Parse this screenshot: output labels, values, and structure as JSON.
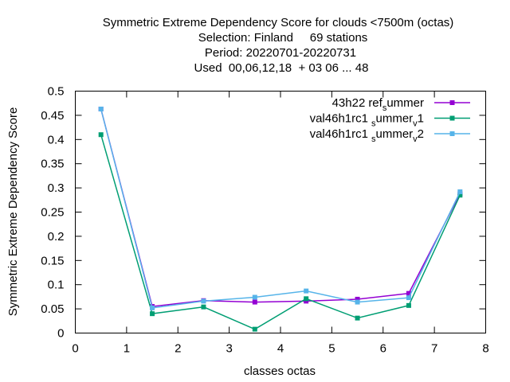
{
  "chart_data": {
    "type": "line",
    "title_lines": [
      "Symmetric Extreme Dependency Score  for clouds <7500m (octas)",
      "Selection: Finland     69 stations",
      "Period: 20220701-20220731",
      "Used  00,06,12,18  + 03 06 ... 48"
    ],
    "xlabel": "classes octas",
    "ylabel": "Symmetric Extreme Dependency Score",
    "xlim": [
      0,
      8
    ],
    "ylim": [
      0,
      0.5
    ],
    "xticks": [
      0,
      1,
      2,
      3,
      4,
      5,
      6,
      7,
      8
    ],
    "yticks": [
      0,
      0.05,
      0.1,
      0.15,
      0.2,
      0.25,
      0.3,
      0.35,
      0.4,
      0.45,
      0.5
    ],
    "xtick_labels": [
      "0",
      "1",
      "2",
      "3",
      "4",
      "5",
      "6",
      "7",
      "8"
    ],
    "ytick_labels": [
      "0",
      "0.05",
      "0.1",
      "0.15",
      "0.2",
      "0.25",
      "0.3",
      "0.35",
      "0.4",
      "0.45",
      "0.5"
    ],
    "legend_position": "top-right",
    "grid": false,
    "x": [
      0.5,
      1.5,
      2.5,
      3.5,
      4.5,
      5.5,
      6.5,
      7.5
    ],
    "series": [
      {
        "name_main": "43h22",
        "name_parts": [
          [
            "",
            "ref"
          ],
          [
            "sub",
            "s"
          ],
          [
            "",
            "ummer"
          ]
        ],
        "color": "#9400d3",
        "values": [
          0.463,
          0.055,
          0.067,
          0.064,
          0.066,
          0.07,
          0.082,
          0.288
        ]
      },
      {
        "name_main": "val46h1rc1",
        "name_parts": [
          [
            "sub",
            "s"
          ],
          [
            "",
            "ummer"
          ],
          [
            "sub",
            "v"
          ],
          [
            "",
            "1"
          ]
        ],
        "color": "#009e73",
        "values": [
          0.41,
          0.04,
          0.054,
          0.008,
          0.071,
          0.031,
          0.057,
          0.285
        ]
      },
      {
        "name_main": "val46h1rc1",
        "name_parts": [
          [
            "sub",
            "s"
          ],
          [
            "",
            "ummer"
          ],
          [
            "sub",
            "v"
          ],
          [
            "",
            "2"
          ]
        ],
        "color": "#56b4e9",
        "values": [
          0.463,
          0.052,
          0.066,
          0.074,
          0.087,
          0.064,
          0.073,
          0.292
        ]
      }
    ]
  }
}
